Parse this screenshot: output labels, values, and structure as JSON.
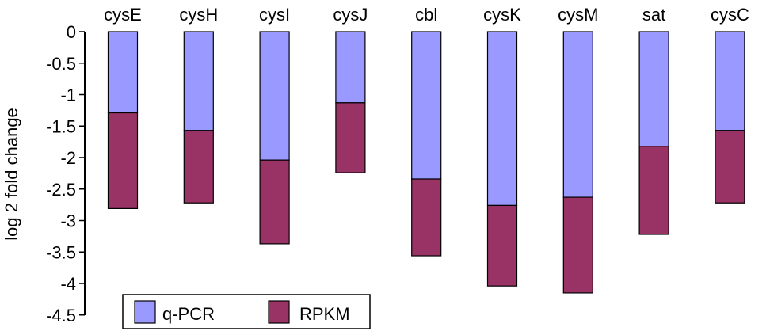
{
  "chart_data": {
    "type": "bar",
    "stacked": true,
    "title": "",
    "xlabel": "",
    "ylabel": "log 2 fold change",
    "ylim": [
      -4.5,
      0
    ],
    "yticks": [
      "0",
      "-0.5",
      "-1",
      "-1.5",
      "-2",
      "-2.5",
      "-3",
      "-3.5",
      "-4",
      "-4.5"
    ],
    "ytick_values": [
      0,
      -0.5,
      -1,
      -1.5,
      -2,
      -2.5,
      -3,
      -3.5,
      -4,
      -4.5
    ],
    "categories": [
      "cysE",
      "cysH",
      "cysI",
      "cysJ",
      "cbl",
      "cysK",
      "cysM",
      "sat",
      "cysC"
    ],
    "category_axis_position": "top",
    "grid": false,
    "legend_position": "bottom-left",
    "series": [
      {
        "name": "q-PCR",
        "color": "#9999ff",
        "values": [
          -1.29,
          -1.57,
          -2.04,
          -1.13,
          -2.34,
          -2.76,
          -2.63,
          -1.82,
          -1.57
        ]
      },
      {
        "name": "RPKM",
        "color": "#993366",
        "values": [
          -1.52,
          -1.15,
          -1.33,
          -1.11,
          -1.22,
          -1.28,
          -1.52,
          -1.4,
          -1.15
        ]
      }
    ]
  }
}
